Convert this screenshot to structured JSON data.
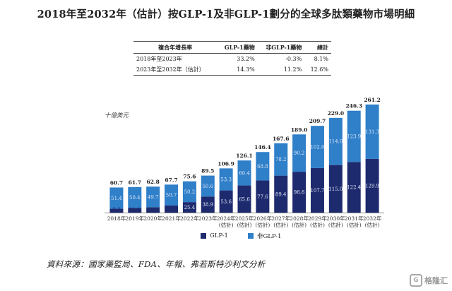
{
  "title": "2018年至2032年（估計）按GLP-1及非GLP-1劃分的全球多肽類藥物市場明細",
  "table": {
    "headers": [
      "複合年增長率",
      "GLP-1藥物",
      "非GLP-1藥物",
      "總計"
    ],
    "rows": [
      [
        "2018年至2023年",
        "33.2%",
        "-0.3%",
        "8.1%"
      ],
      [
        "2023年至2032年（估計）",
        "14.3%",
        "11.2%",
        "12.6%"
      ]
    ]
  },
  "unit": "十億美元",
  "source": "資料來源：國家藥監局、FDA、年報、弗若斯特沙利文分析",
  "watermark": "格隆汇",
  "colors": {
    "glp1": "#1e2a6e",
    "non_glp1": "#2f7fc9",
    "label_light": "#dbe6f5"
  },
  "chart_data": {
    "type": "bar",
    "stacked": true,
    "categories": [
      [
        "2018年"
      ],
      [
        "2019年"
      ],
      [
        "2020年"
      ],
      [
        "2021年"
      ],
      [
        "2022年"
      ],
      [
        "2023年"
      ],
      [
        "2024年",
        "(估計)"
      ],
      [
        "2025年",
        "(估計)"
      ],
      [
        "2026年",
        "(估計)"
      ],
      [
        "2027年",
        "(估計)"
      ],
      [
        "2028年",
        "(估計)"
      ],
      [
        "2029年",
        "(估計)"
      ],
      [
        "2030年",
        "(估計)"
      ],
      [
        "2031年",
        "(估計)"
      ],
      [
        "2032年",
        "(估計)"
      ]
    ],
    "series": [
      {
        "name": "GLP-1",
        "values": [
          9.3,
          11.4,
          13.1,
          17.0,
          25.4,
          38.9,
          53.6,
          65.6,
          77.6,
          89.4,
          98.8,
          107.7,
          115.0,
          122.4,
          129.9
        ]
      },
      {
        "name": "非GLP-1",
        "values": [
          51.4,
          50.4,
          49.7,
          50.7,
          50.2,
          50.6,
          53.3,
          60.4,
          68.8,
          78.2,
          90.2,
          102.0,
          114.0,
          123.9,
          131.3
        ]
      }
    ],
    "totals": [
      60.7,
      61.7,
      62.8,
      67.7,
      75.6,
      89.5,
      106.9,
      126.1,
      146.4,
      167.6,
      189.0,
      209.7,
      229.0,
      246.3,
      261.2
    ],
    "ylabel": "十億美元",
    "ylim": [
      0,
      261.2
    ],
    "grid": false,
    "legend": "bottom-center"
  }
}
